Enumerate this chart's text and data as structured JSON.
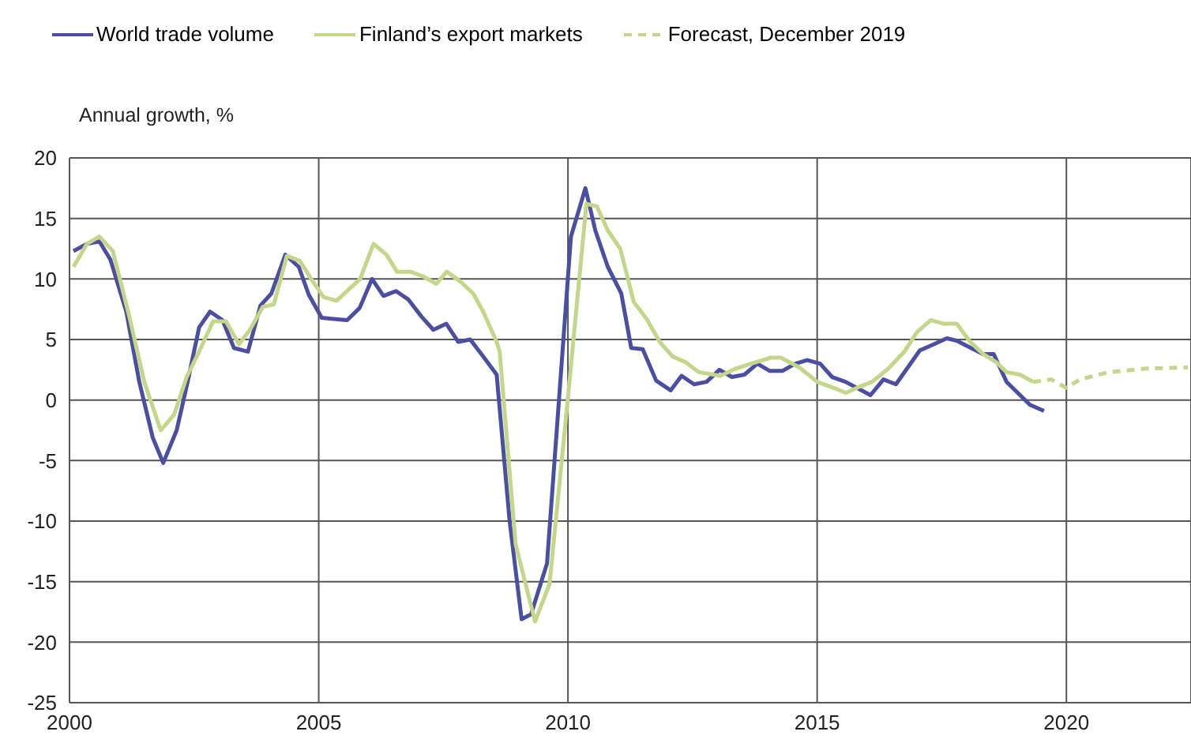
{
  "chart_data": {
    "type": "line",
    "ylabel": "Annual growth, %",
    "xlim": [
      2000,
      2022.5
    ],
    "xticks": [
      2000,
      2005,
      2010,
      2015,
      2020
    ],
    "ylim": [
      -25,
      20
    ],
    "yticks": [
      -25,
      -20,
      -15,
      -10,
      -5,
      0,
      5,
      10,
      15,
      20
    ],
    "grid": true,
    "legend": "top",
    "marker": "none",
    "series": [
      {
        "name": "World trade volume",
        "color": "#4a4fa3",
        "line_style": "solid",
        "x": [
          2000.08,
          2000.35,
          2000.6,
          2000.82,
          2001.14,
          2001.4,
          2001.67,
          2001.88,
          2002.15,
          2002.37,
          2002.6,
          2002.82,
          2003.07,
          2003.3,
          2003.58,
          2003.83,
          2004.05,
          2004.33,
          2004.6,
          2004.8,
          2005.06,
          2005.3,
          2005.57,
          2005.82,
          2006.07,
          2006.3,
          2006.55,
          2006.8,
          2007.06,
          2007.3,
          2007.56,
          2007.8,
          2008.04,
          2008.3,
          2008.57,
          2008.83,
          2009.07,
          2009.26,
          2009.58,
          2010.06,
          2010.35,
          2010.55,
          2010.8,
          2011.07,
          2011.27,
          2011.5,
          2011.77,
          2012.06,
          2012.28,
          2012.53,
          2012.78,
          2013.04,
          2013.29,
          2013.54,
          2013.8,
          2014.05,
          2014.3,
          2014.56,
          2014.8,
          2015.06,
          2015.3,
          2015.57,
          2016.07,
          2016.33,
          2016.58,
          2017.06,
          2017.28,
          2017.6,
          2017.8,
          2018.32,
          2018.54,
          2018.8,
          2019.27,
          2019.55
        ],
        "values": [
          12.3,
          12.9,
          13.1,
          11.6,
          7.3,
          1.5,
          -3.1,
          -5.2,
          -2.5,
          1.5,
          6.0,
          7.3,
          6.6,
          4.3,
          4.0,
          7.8,
          8.8,
          12.0,
          11.0,
          8.7,
          6.8,
          6.7,
          6.6,
          7.6,
          10.0,
          8.6,
          9.0,
          8.3,
          6.9,
          5.8,
          6.3,
          4.8,
          5.0,
          3.6,
          2.1,
          -10.0,
          -18.1,
          -17.7,
          -13.5,
          13.5,
          17.5,
          14.0,
          11.0,
          8.8,
          4.3,
          4.2,
          1.6,
          0.8,
          2.0,
          1.3,
          1.5,
          2.5,
          1.9,
          2.1,
          3.0,
          2.4,
          2.4,
          3.0,
          3.3,
          3.0,
          1.9,
          1.5,
          0.4,
          1.7,
          1.3,
          4.1,
          4.5,
          5.1,
          4.9,
          3.8,
          3.8,
          1.5,
          -0.4,
          -0.9
        ]
      },
      {
        "name": "Finland’s export markets",
        "color": "#c3d68a",
        "line_style": "solid",
        "x": [
          2000.08,
          2000.35,
          2000.6,
          2000.87,
          2001.2,
          2001.5,
          2001.83,
          2002.1,
          2002.35,
          2002.6,
          2002.88,
          2003.14,
          2003.4,
          2003.62,
          2003.88,
          2004.1,
          2004.36,
          2004.62,
          2004.88,
          2005.1,
          2005.36,
          2005.62,
          2005.83,
          2006.1,
          2006.36,
          2006.57,
          2006.84,
          2007.1,
          2007.36,
          2007.57,
          2007.84,
          2008.1,
          2008.3,
          2008.57,
          2008.63,
          2008.95,
          2009.34,
          2009.63,
          2009.9,
          2010.0,
          2010.37,
          2010.58,
          2010.8,
          2011.05,
          2011.32,
          2011.58,
          2011.84,
          2012.1,
          2012.37,
          2012.63,
          2013.06,
          2013.37,
          2013.75,
          2014.07,
          2014.27,
          2014.64,
          2015.0,
          2015.27,
          2015.58,
          2015.85,
          2016.1,
          2016.43,
          2016.75,
          2017.0,
          2017.28,
          2017.54,
          2017.8,
          2018.07,
          2018.33,
          2018.6,
          2018.8,
          2019.07,
          2019.33
        ],
        "values": [
          11.0,
          12.9,
          13.5,
          12.3,
          6.9,
          1.5,
          -2.5,
          -1.2,
          1.9,
          4.0,
          6.5,
          6.5,
          4.6,
          5.8,
          7.7,
          7.9,
          11.9,
          11.5,
          9.8,
          8.5,
          8.2,
          9.2,
          10.0,
          12.9,
          12.0,
          10.6,
          10.6,
          10.2,
          9.6,
          10.6,
          9.8,
          8.8,
          7.3,
          4.8,
          4.0,
          -11.9,
          -18.3,
          -15.2,
          -4.0,
          0.2,
          16.2,
          16.0,
          14.0,
          12.5,
          8.1,
          6.7,
          4.8,
          3.6,
          3.1,
          2.3,
          2.0,
          2.6,
          3.1,
          3.5,
          3.5,
          2.7,
          1.5,
          1.1,
          0.6,
          1.1,
          1.5,
          2.6,
          4.0,
          5.6,
          6.6,
          6.3,
          6.3,
          4.8,
          3.8,
          3.1,
          2.3,
          2.1,
          1.5
        ]
      },
      {
        "name": "Forecast, December 2019",
        "color": "#c3d68a",
        "line_style": "dashed",
        "x": [
          2019.33,
          2019.7,
          2020.0,
          2020.27,
          2020.85,
          2021.6,
          2022.44
        ],
        "values": [
          1.5,
          1.7,
          1.0,
          1.7,
          2.3,
          2.6,
          2.7
        ]
      }
    ]
  }
}
